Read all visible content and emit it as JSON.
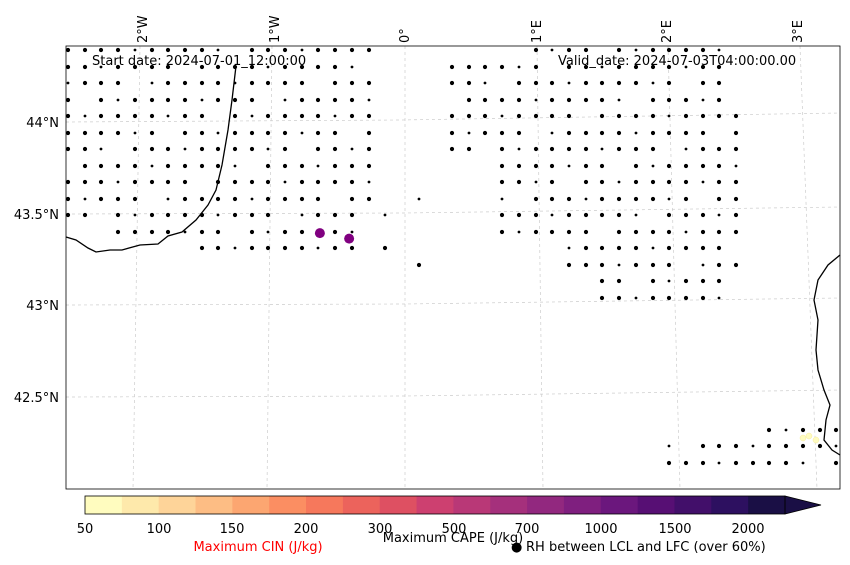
{
  "map": {
    "start_date": "Start date: 2024-07-01_12:00:00",
    "valid_date": "Valid_date: 2024-07-03T04:00:00.00",
    "lon_labels": [
      "2°W",
      "1°W",
      "0°",
      "1°E",
      "2°E",
      "3°E"
    ],
    "lat_labels": [
      "44°N",
      "43.5°N",
      "43°N",
      "42.5°N"
    ],
    "lat_values": [
      44.0,
      43.5,
      43.0,
      42.5
    ],
    "lon_values": [
      -2,
      -1,
      0,
      1,
      2,
      3
    ],
    "extent": {
      "lon_min": -2.5,
      "lon_max": 3.2,
      "lat_min": 42.0,
      "lat_max": 44.4
    },
    "cape_points": [
      {
        "lon": -0.64,
        "lat": 43.39,
        "color": "#800080"
      },
      {
        "lon": -0.42,
        "lat": 43.36,
        "color": "#800080"
      }
    ],
    "rh_dots_note": "RH between LCL and LFC (over 60%)"
  },
  "colorbar": {
    "ticks": [
      "50",
      "100",
      "150",
      "200",
      "300",
      "500",
      "700",
      "1000",
      "1500",
      "2000"
    ],
    "colors": [
      "#fffcbf",
      "#fee9ab",
      "#fed499",
      "#fdbd84",
      "#fca671",
      "#fb8e62",
      "#f6785c",
      "#ec635c",
      "#de5062",
      "#cd4070",
      "#b93877",
      "#a5307c",
      "#92287f",
      "#7f1f7f",
      "#6b177d",
      "#570f74",
      "#420f6a",
      "#2d1060",
      "#1a0f45"
    ],
    "label_cape": "Maximum CAPE (J/kg)",
    "label_cin": "Maximum CIN (J/kg)",
    "label_rh": "RH between LCL and LFC (over 60%)",
    "rh_symbol": "●",
    "cin_color": "#ff0000"
  }
}
